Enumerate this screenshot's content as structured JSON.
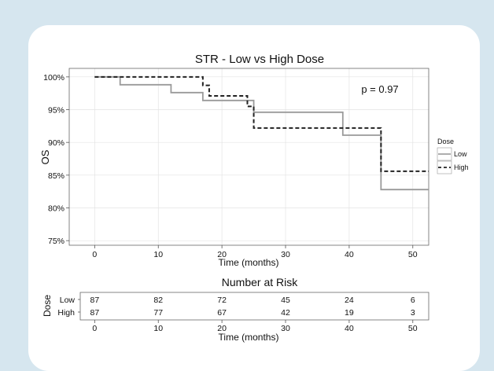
{
  "colors": {
    "background": "#d6e6ef",
    "card": "#ffffff",
    "low": "#9a9a9a",
    "high": "#222222",
    "grid": "#e3e3e3"
  },
  "chart_data": [
    {
      "type": "line",
      "title": "STR - Low vs High Dose",
      "xlabel": "Time (months)",
      "ylabel": "OS",
      "xlim": [
        -4,
        52.5
      ],
      "ylim": [
        74.3,
        101.3
      ],
      "x_ticks": [
        "0",
        "10",
        "20",
        "30",
        "40",
        "50"
      ],
      "y_ticks": [
        "75%",
        "80%",
        "85%",
        "90%",
        "95%",
        "100%"
      ],
      "annotation": "p = 0.97",
      "grid": true,
      "legend": {
        "title": "Dose",
        "position": "right"
      },
      "series": [
        {
          "name": "Low",
          "style": "solid",
          "color": "#9a9a9a",
          "x": [
            0,
            4,
            12,
            17,
            25,
            39,
            45,
            52.5
          ],
          "y": [
            100,
            98.8,
            97.6,
            96.4,
            94.6,
            91.1,
            82.8,
            82.8
          ]
        },
        {
          "name": "High",
          "style": "dashed",
          "color": "#222222",
          "x": [
            0,
            17,
            18,
            24,
            25,
            45,
            52.5
          ],
          "y": [
            100,
            98.7,
            97.1,
            95.5,
            92.2,
            85.6,
            85.6
          ]
        }
      ]
    },
    {
      "type": "table",
      "title": "Number at Risk",
      "xlabel": "Time (months)",
      "ylabel": "Dose",
      "x_ticks": [
        "0",
        "10",
        "20",
        "30",
        "40",
        "50"
      ],
      "rows": [
        {
          "name": "Low",
          "values": [
            "87",
            "82",
            "72",
            "45",
            "24",
            "6"
          ]
        },
        {
          "name": "High",
          "values": [
            "87",
            "77",
            "67",
            "42",
            "19",
            "3"
          ]
        }
      ]
    }
  ]
}
